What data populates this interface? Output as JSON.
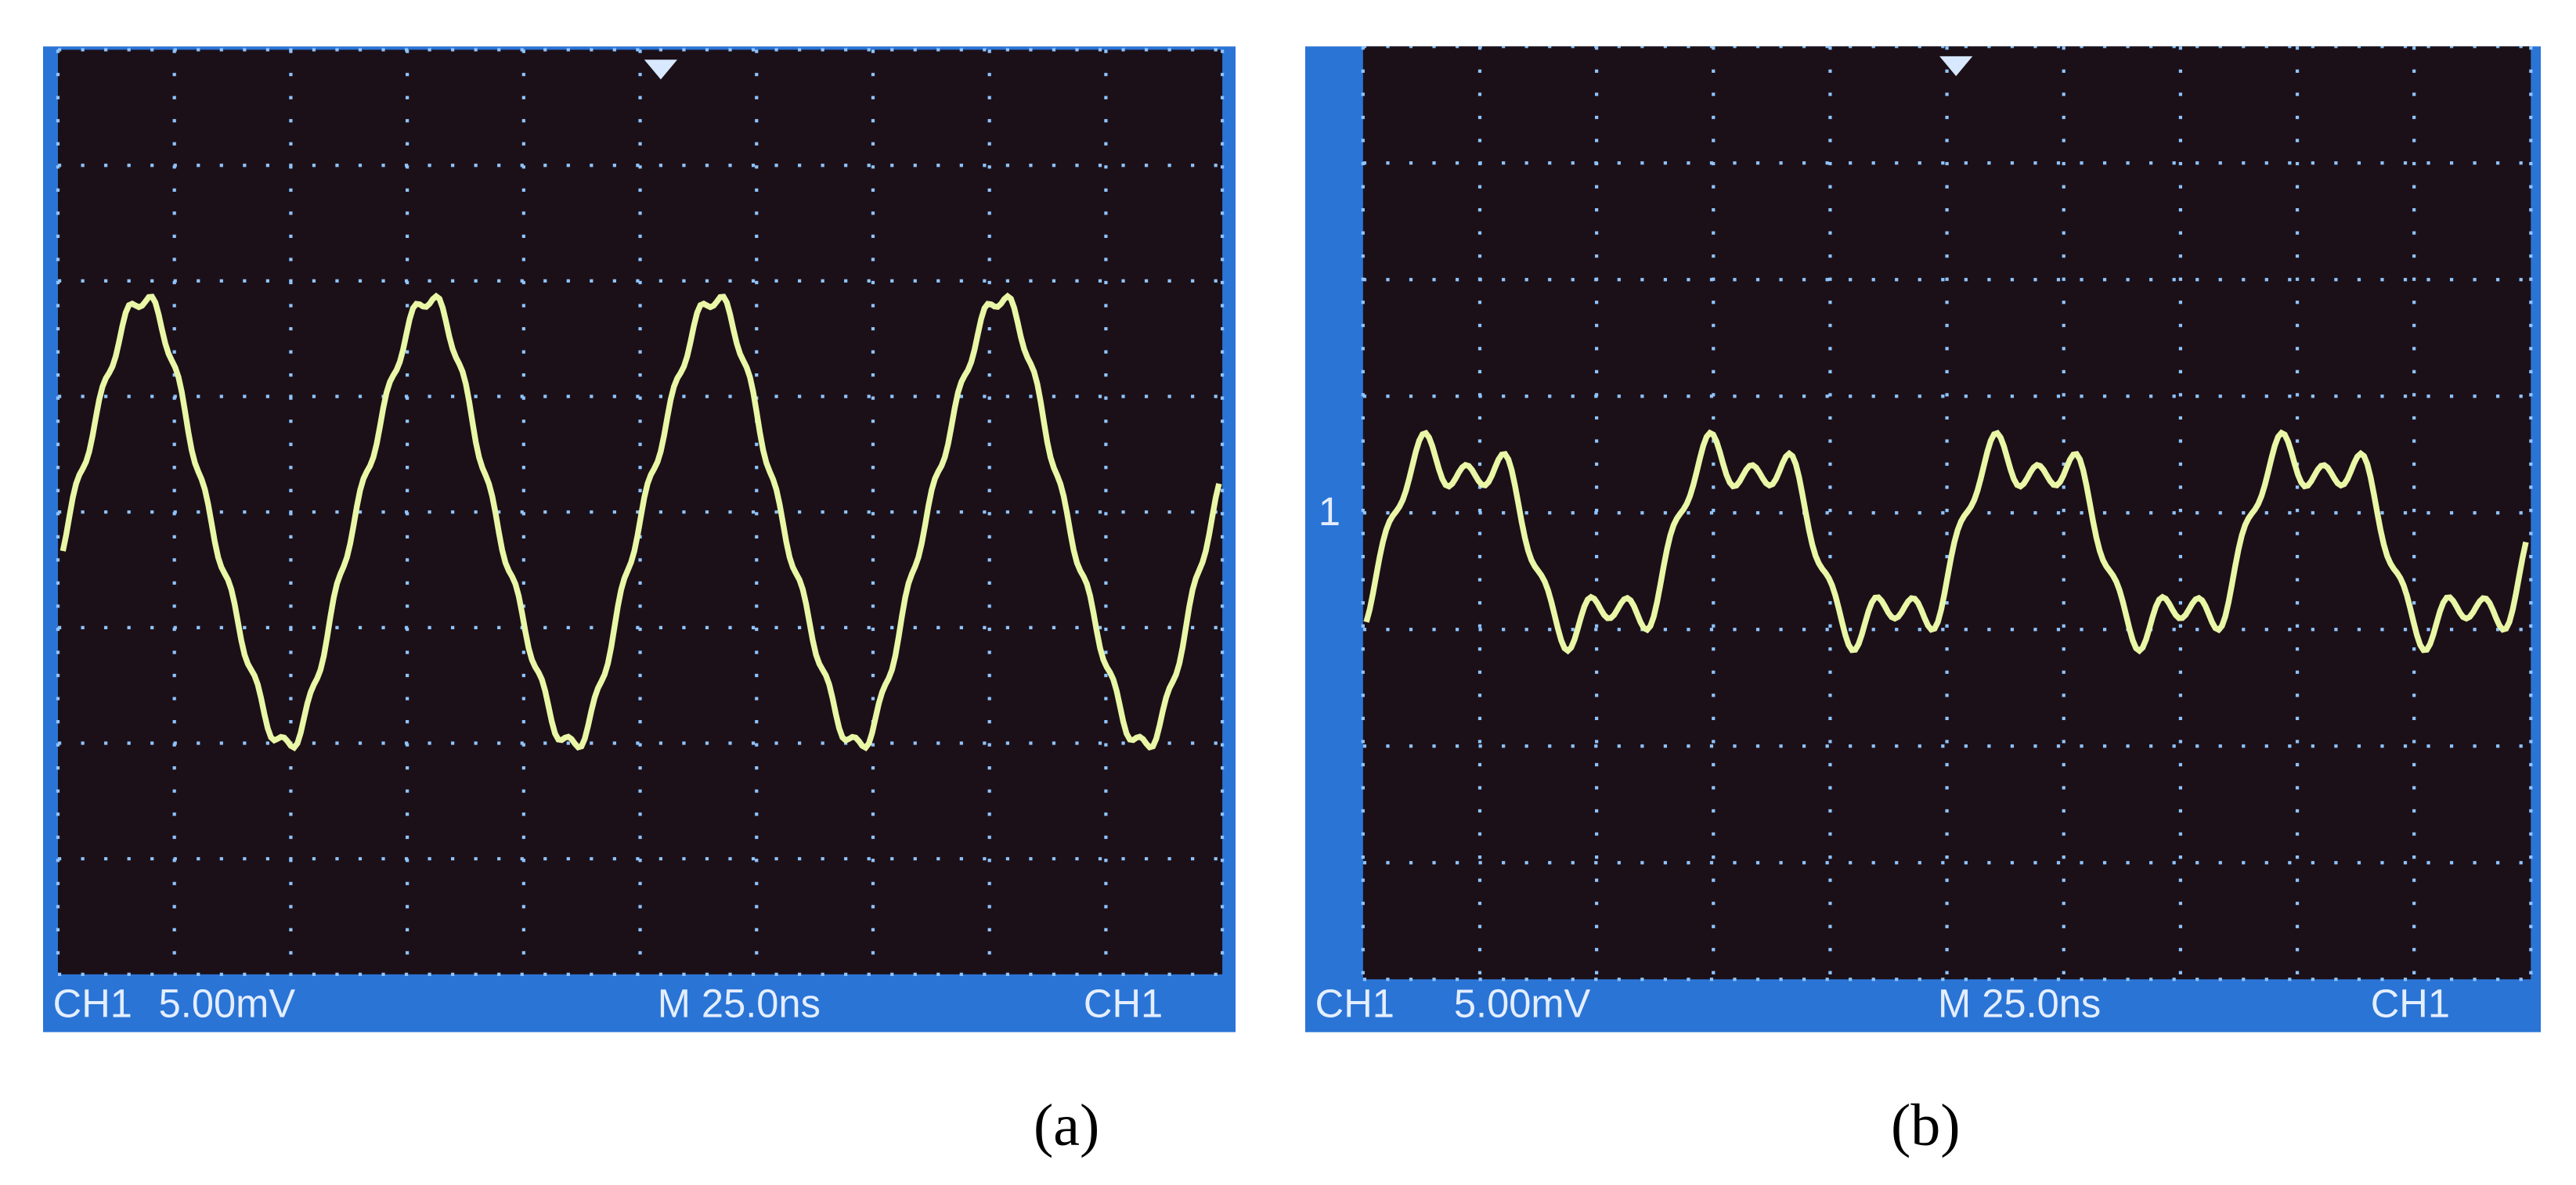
{
  "panels": [
    {
      "label": "(a)",
      "channel": "CH1",
      "scale": "5.00mV",
      "timebase": "M 25.0ns",
      "trigger": "CH1"
    },
    {
      "label": "(b)",
      "channel": "CH1",
      "scale": "5.00mV",
      "timebase": "M 25.0ns",
      "trigger": "CH1",
      "marker": "1"
    }
  ]
}
